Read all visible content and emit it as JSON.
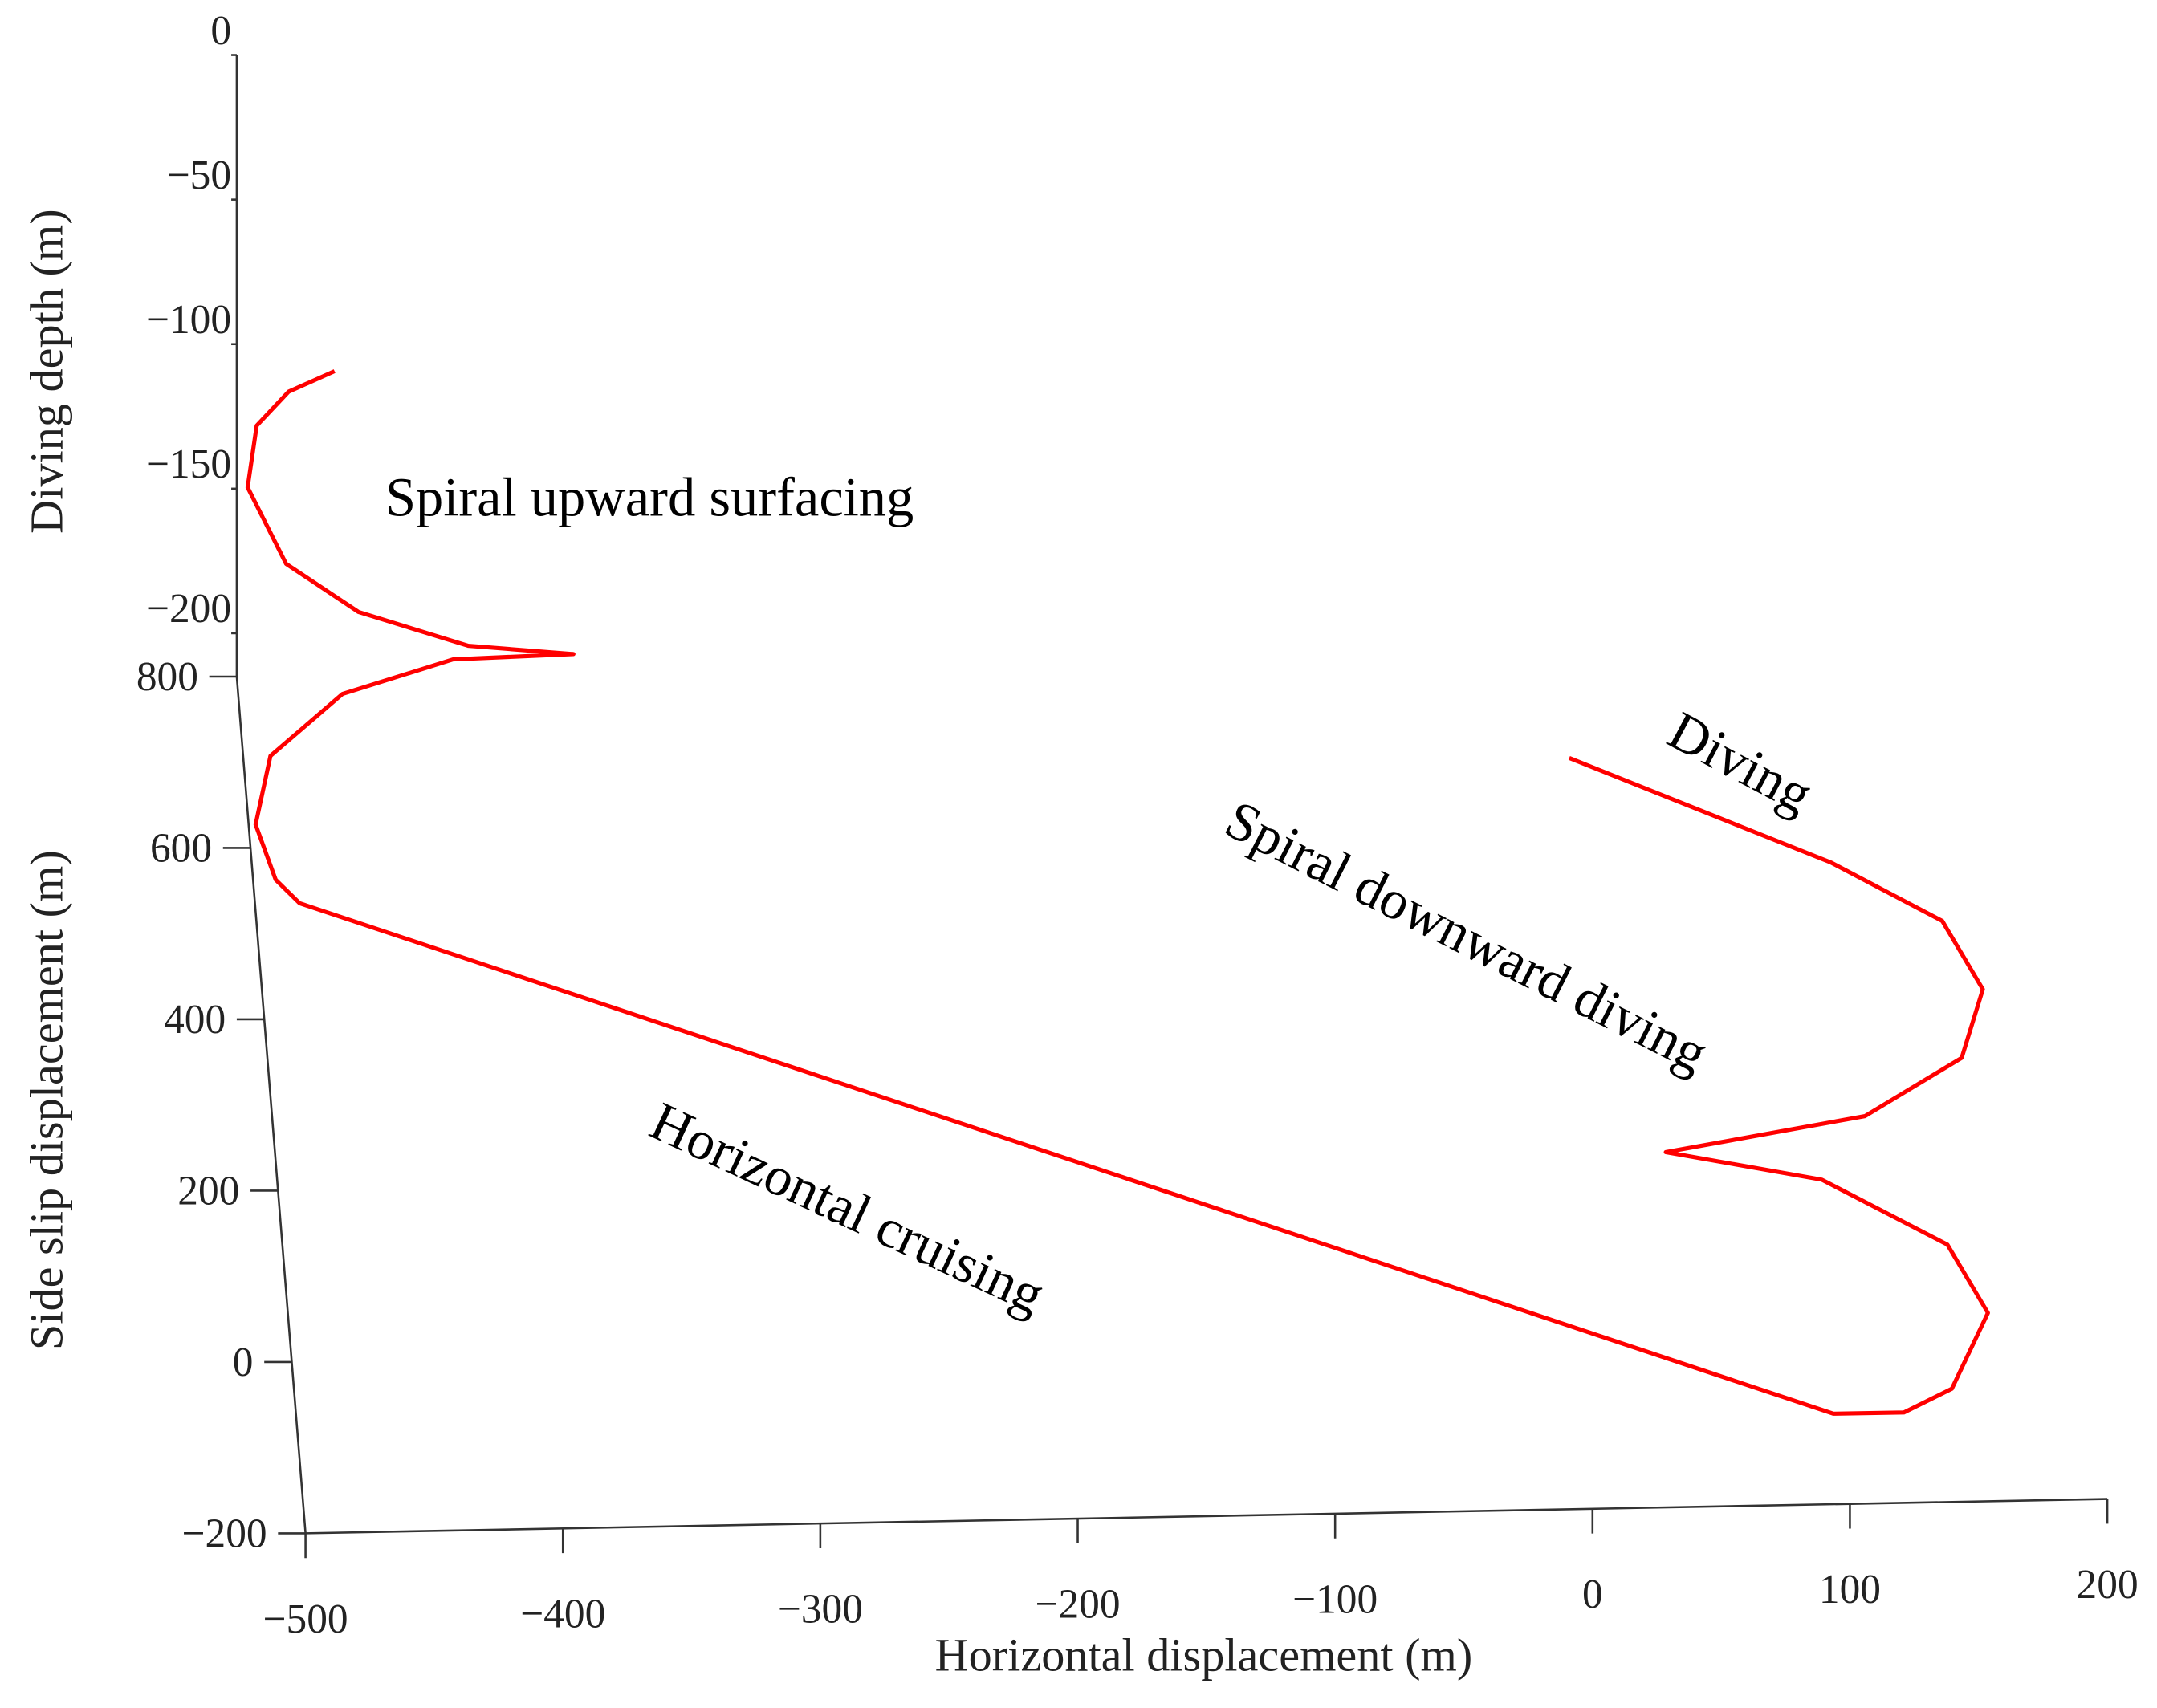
{
  "chart_data": {
    "type": "line3d",
    "x_label": "Horizontal displacement (m)",
    "y_label": "Side slip displacement (m)",
    "z_label": "Diving depth (m)",
    "annotations": [
      "Spiral upward surfacing",
      "Diving",
      "Spiral downward diving",
      "Horizontal cruising"
    ],
    "xlim": [
      -500,
      200
    ],
    "xticks": [
      {
        "value": -500,
        "label": "−500"
      },
      {
        "value": -400,
        "label": "−400"
      },
      {
        "value": -300,
        "label": "−300"
      },
      {
        "value": -200,
        "label": "−200"
      },
      {
        "value": -100,
        "label": "−100"
      },
      0,
      100,
      200
    ],
    "ylim": [
      -200,
      800
    ],
    "yticks": [
      {
        "value": -200,
        "label": "−200"
      },
      0,
      200,
      400,
      600,
      800
    ],
    "zlim": [
      -215,
      0
    ],
    "zticks": [
      0,
      {
        "value": -50,
        "label": "−50"
      },
      {
        "value": -100,
        "label": "−100"
      },
      {
        "value": -150,
        "label": "−150"
      },
      {
        "value": -200,
        "label": "−200"
      }
    ],
    "series": [
      {
        "color": "#ff0000",
        "x": [
          -5,
          97,
          140,
          155,
          146,
          108,
          31,
          92,
          140,
          155,
          140,
          122,
          95,
          -484,
          -493,
          -500,
          -493,
          -464,
          -421,
          -375,
          -416,
          -458,
          -485,
          -498,
          -493,
          -480,
          -462
        ],
        "y": [
          -49,
          -42,
          -45,
          -75,
          -104,
          -119,
          -106,
          -91,
          -119,
          -149,
          -186,
          -162,
          -145,
          484,
          495,
          526,
          572,
          609,
          613,
          583,
          578,
          603,
          644,
          717,
          772,
          794,
          800
        ],
        "z": [
          0,
          -40,
          -60,
          -75,
          -90,
          -105,
          -120,
          -135,
          -150,
          -165,
          -180,
          -195,
          -200,
          -200,
          -195,
          -185,
          -175,
          -165,
          -155,
          -145,
          -140,
          -135,
          -130,
          -125,
          -120,
          -115,
          -110
        ]
      }
    ]
  }
}
